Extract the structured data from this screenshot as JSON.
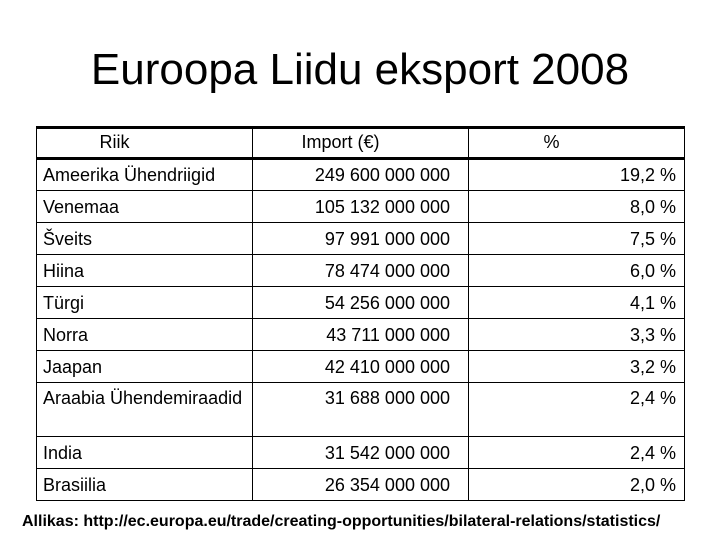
{
  "title": "Euroopa Liidu eksport 2008",
  "table": {
    "headers": {
      "country": "Riik",
      "import": "Import (€)",
      "percent": "%"
    },
    "rows": [
      {
        "country": "Ameerika Ühendriigid",
        "import": "249 600 000 000",
        "percent": "19,2 %"
      },
      {
        "country": "Venemaa",
        "import": "105 132 000 000",
        "percent": "8,0 %"
      },
      {
        "country": "Šveits",
        "import": "97 991 000 000",
        "percent": "7,5 %"
      },
      {
        "country": "Hiina",
        "import": "78 474 000 000",
        "percent": "6,0 %"
      },
      {
        "country": "Türgi",
        "import": "54 256 000 000",
        "percent": "4,1 %"
      },
      {
        "country": "Norra",
        "import": "43 711 000 000",
        "percent": "3,3 %"
      },
      {
        "country": "Jaapan",
        "import": "42 410 000 000",
        "percent": "3,2 %"
      },
      {
        "country": "Araabia Ühendemiraadid",
        "import": "31 688 000 000",
        "percent": "2,4 %"
      },
      {
        "country": "India",
        "import": "31 542 000 000",
        "percent": "2,4 %"
      },
      {
        "country": "Brasiilia",
        "import": "26 354 000 000",
        "percent": "2,0 %"
      }
    ]
  },
  "source": "Allikas: http://ec.europa.eu/trade/creating-opportunities/bilateral-relations/statistics/"
}
